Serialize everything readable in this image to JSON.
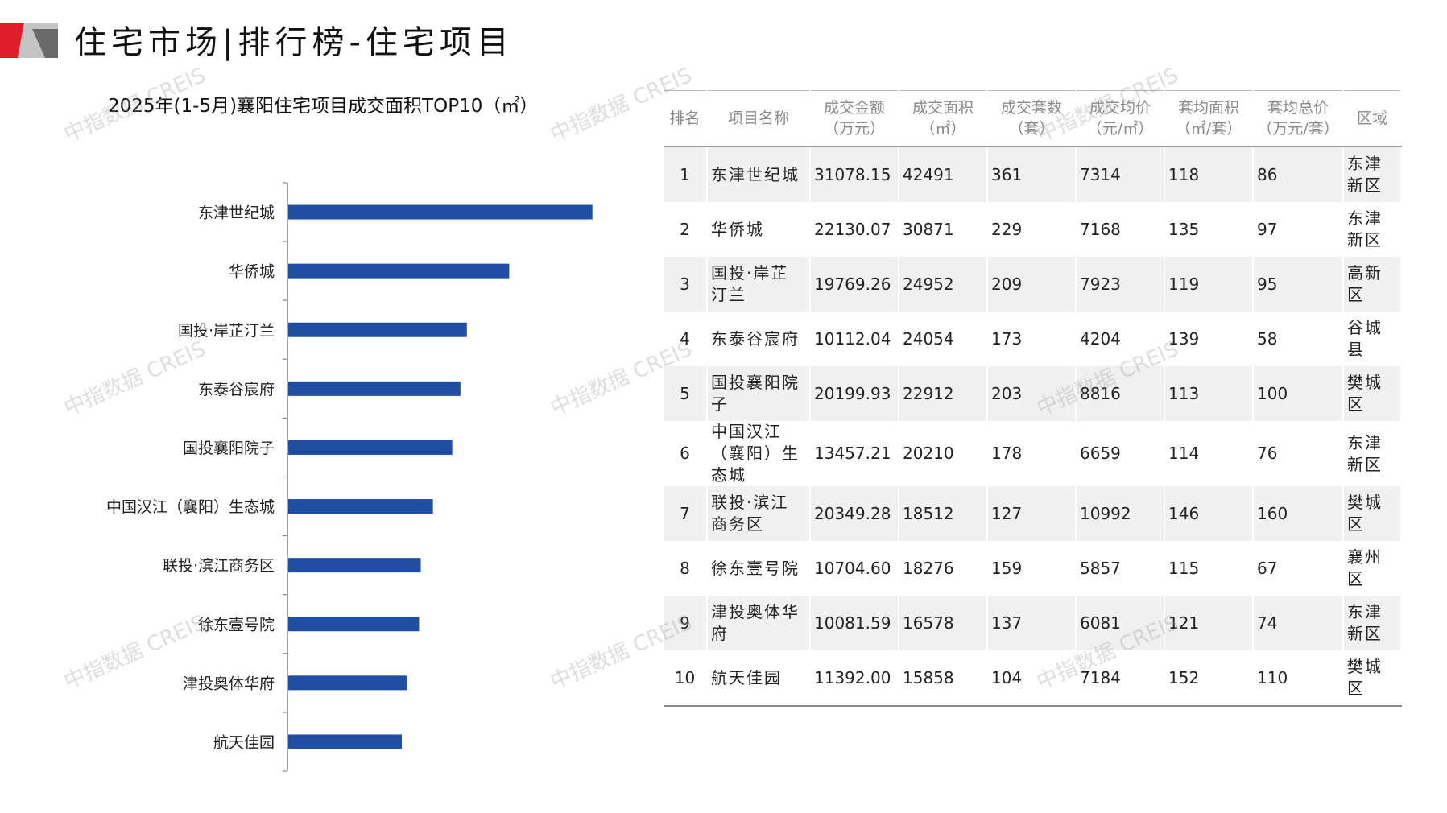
{
  "page": {
    "title": "住宅市场|排行榜-住宅项目"
  },
  "colors": {
    "bar": "#1f4ea3",
    "logo_red": "#e01e2a",
    "logo_gray": "#b9b9b9"
  },
  "watermark": "中指数据 CREIS",
  "chart_data": {
    "type": "bar",
    "orientation": "horizontal",
    "title": "2025年(1-5月)襄阳住宅项目成交面积TOP10（㎡）",
    "categories": [
      "东津世纪城",
      "华侨城",
      "国投·岸芷汀兰",
      "东泰谷宸府",
      "国投襄阳院子",
      "中国汉江（襄阳）生态城",
      "联投·滨江商务区",
      "徐东壹号院",
      "津投奥体华府",
      "航天佳园"
    ],
    "values": [
      42491,
      30871,
      24952,
      24054,
      22912,
      20210,
      18512,
      18276,
      16578,
      15858
    ],
    "xlim": [
      0,
      45000
    ],
    "grid": false,
    "legend": "none"
  },
  "table": {
    "headers": [
      [
        "排名"
      ],
      [
        "项目名称"
      ],
      [
        "成交金额",
        "（万元）"
      ],
      [
        "成交面积",
        "（㎡）"
      ],
      [
        "成交套数",
        "（套）"
      ],
      [
        "成交均价",
        "（元/㎡）"
      ],
      [
        "套均面积",
        "（㎡/套）"
      ],
      [
        "套均总价",
        "（万元/套）"
      ],
      [
        "区域"
      ]
    ],
    "rows": [
      [
        "1",
        "东津世纪城",
        "31078.15",
        "42491",
        "361",
        "7314",
        "118",
        "86",
        "东津新区"
      ],
      [
        "2",
        "华侨城",
        "22130.07",
        "30871",
        "229",
        "7168",
        "135",
        "97",
        "东津新区"
      ],
      [
        "3",
        "国投·岸芷汀兰",
        "19769.26",
        "24952",
        "209",
        "7923",
        "119",
        "95",
        "高新区"
      ],
      [
        "4",
        "东泰谷宸府",
        "10112.04",
        "24054",
        "173",
        "4204",
        "139",
        "58",
        "谷城县"
      ],
      [
        "5",
        "国投襄阳院子",
        "20199.93",
        "22912",
        "203",
        "8816",
        "113",
        "100",
        "樊城区"
      ],
      [
        "6",
        "中国汉江（襄阳）生态城",
        "13457.21",
        "20210",
        "178",
        "6659",
        "114",
        "76",
        "东津新区"
      ],
      [
        "7",
        "联投·滨江商务区",
        "20349.28",
        "18512",
        "127",
        "10992",
        "146",
        "160",
        "樊城区"
      ],
      [
        "8",
        "徐东壹号院",
        "10704.60",
        "18276",
        "159",
        "5857",
        "115",
        "67",
        "襄州区"
      ],
      [
        "9",
        "津投奥体华府",
        "10081.59",
        "16578",
        "137",
        "6081",
        "121",
        "74",
        "东津新区"
      ],
      [
        "10",
        "航天佳园",
        "11392.00",
        "15858",
        "104",
        "7184",
        "152",
        "110",
        "樊城区"
      ]
    ]
  }
}
